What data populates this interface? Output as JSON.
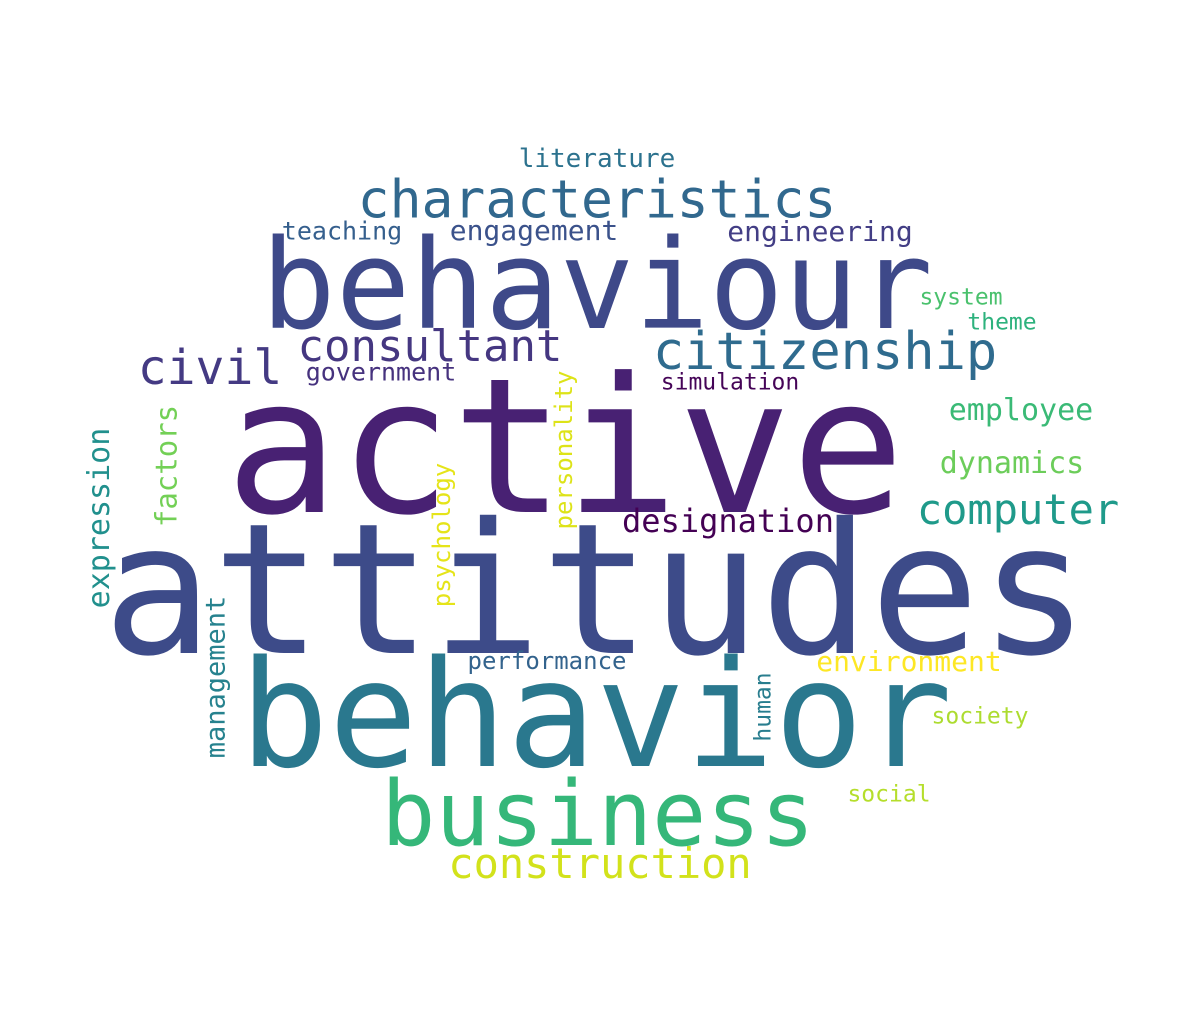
{
  "words": [
    {
      "text": "active",
      "color": "#482173",
      "weight": 1.0
    },
    {
      "text": "attitudes",
      "color": "#3d4b89",
      "weight": 0.98
    },
    {
      "text": "behavior",
      "color": "#2a788e",
      "weight": 0.92
    },
    {
      "text": "behaviour",
      "color": "#3e4989",
      "weight": 0.8
    },
    {
      "text": "business",
      "color": "#35b779",
      "weight": 0.62
    },
    {
      "text": "characteristics",
      "color": "#31688e",
      "weight": 0.4
    },
    {
      "text": "citizenship",
      "color": "#2f6b8e",
      "weight": 0.38
    },
    {
      "text": "civil",
      "color": "#443a83",
      "weight": 0.36
    },
    {
      "text": "consultant",
      "color": "#453781",
      "weight": 0.35
    },
    {
      "text": "construction",
      "color": "#d2e21b",
      "weight": 0.34
    },
    {
      "text": "computer",
      "color": "#1f9a8a",
      "weight": 0.32
    },
    {
      "text": "designation",
      "color": "#440154",
      "weight": 0.26
    },
    {
      "text": "employee",
      "color": "#3aba76",
      "weight": 0.24
    },
    {
      "text": "dynamics",
      "color": "#6ccd5a",
      "weight": 0.24
    },
    {
      "text": "environment",
      "color": "#fde725",
      "weight": 0.23
    },
    {
      "text": "expression",
      "color": "#21908d",
      "weight": 0.23
    },
    {
      "text": "factors",
      "color": "#73d056",
      "weight": 0.22
    },
    {
      "text": "engineering",
      "color": "#433e85",
      "weight": 0.22
    },
    {
      "text": "engagement",
      "color": "#3b528b",
      "weight": 0.22
    },
    {
      "text": "management",
      "color": "#26828e",
      "weight": 0.21
    },
    {
      "text": "literature",
      "color": "#2c728e",
      "weight": 0.2
    },
    {
      "text": "teaching",
      "color": "#355f8d",
      "weight": 0.2
    },
    {
      "text": "government",
      "color": "#46327e",
      "weight": 0.19
    },
    {
      "text": "personality",
      "color": "#dde318",
      "weight": 0.19
    },
    {
      "text": "psychology",
      "color": "#e5e419",
      "weight": 0.19
    },
    {
      "text": "performance",
      "color": "#33638d",
      "weight": 0.19
    },
    {
      "text": "human",
      "color": "#287d8e",
      "weight": 0.18
    },
    {
      "text": "simulation",
      "color": "#450457",
      "weight": 0.18
    },
    {
      "text": "system",
      "color": "#4ac16d",
      "weight": 0.18
    },
    {
      "text": "theme",
      "color": "#2db27d",
      "weight": 0.18
    },
    {
      "text": "society",
      "color": "#addc30",
      "weight": 0.18
    },
    {
      "text": "social",
      "color": "#b5de2b",
      "weight": 0.18
    }
  ]
}
